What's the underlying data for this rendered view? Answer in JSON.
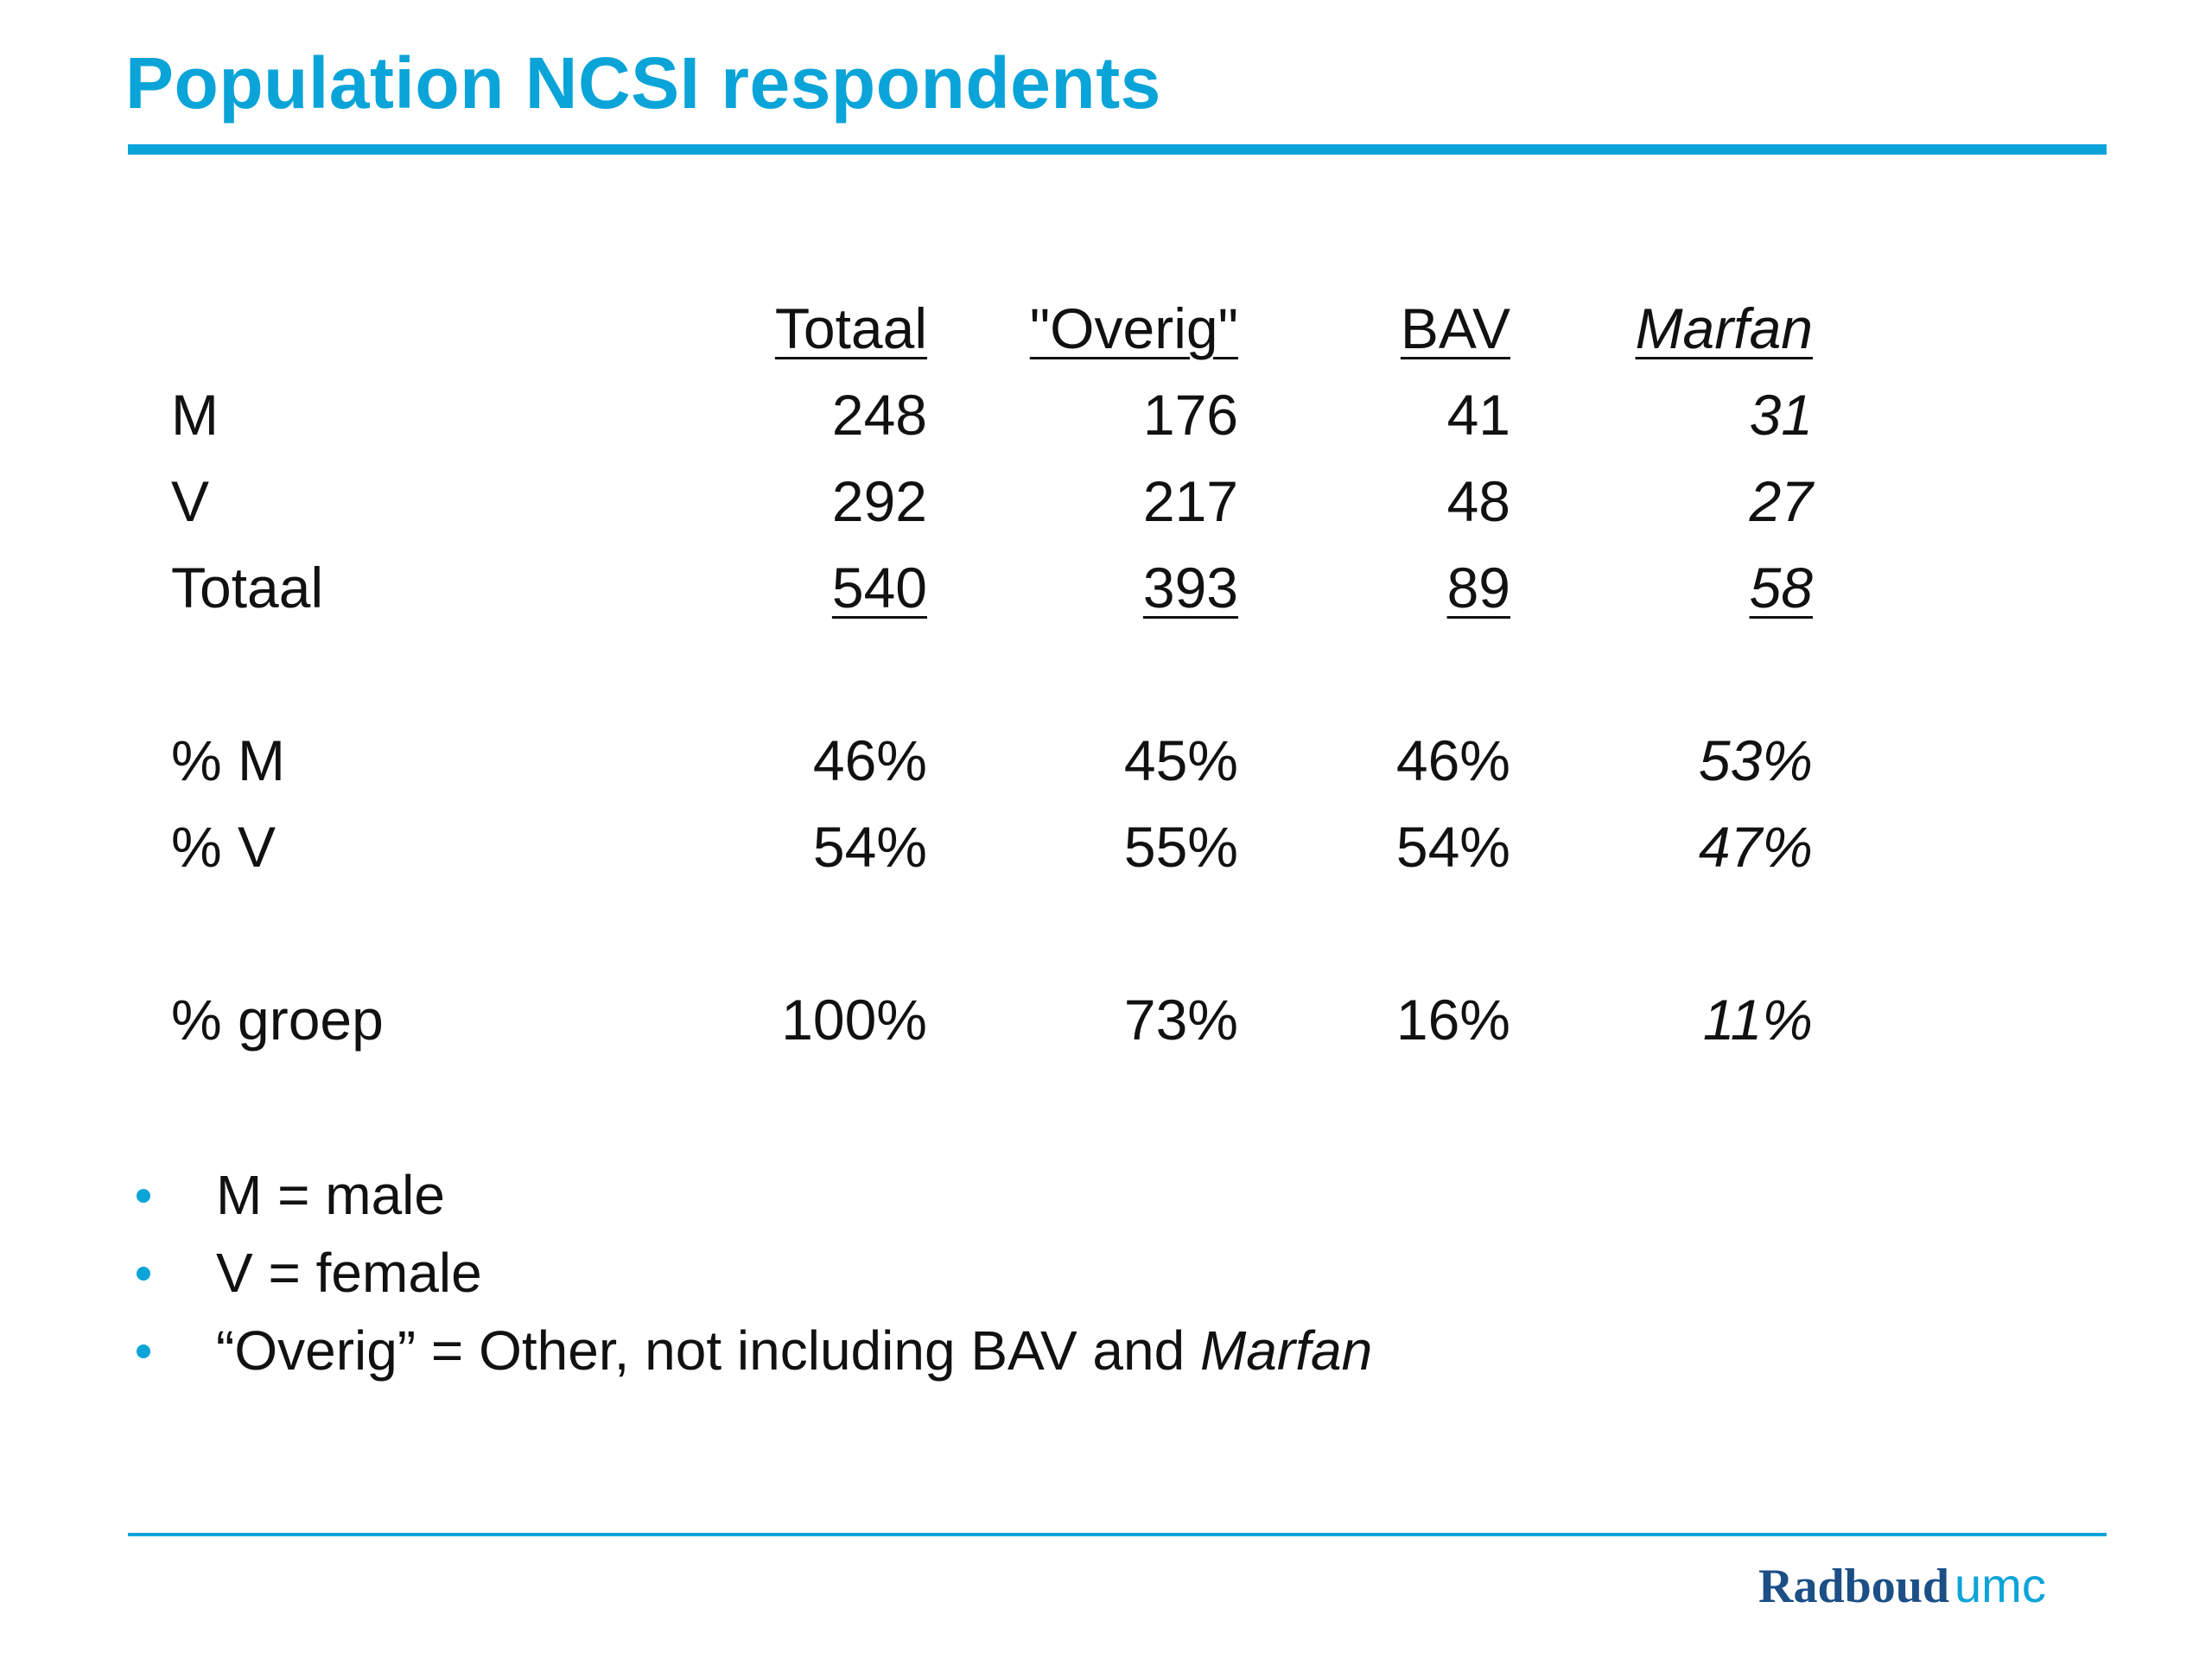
{
  "title": "Population NCSI respondents",
  "accent_color": "#0aa4d8",
  "logo_color": "#1b4f86",
  "table": {
    "headers": [
      "Totaal",
      "\"Overig\"",
      "BAV",
      "Marfan"
    ],
    "rows": [
      {
        "label": "M",
        "values": [
          "248",
          "176",
          "41",
          "31"
        ]
      },
      {
        "label": "V",
        "values": [
          "292",
          "217",
          "48",
          "27"
        ]
      },
      {
        "label": "Totaal",
        "values": [
          "540",
          "393",
          "89",
          "58"
        ]
      },
      {
        "label": "% M",
        "values": [
          "46%",
          "45%",
          "46%",
          "53%"
        ]
      },
      {
        "label": "% V",
        "values": [
          "54%",
          "55%",
          "54%",
          "47%"
        ]
      },
      {
        "label": "% groep",
        "values": [
          "100%",
          "73%",
          "16%",
          "11%"
        ]
      }
    ]
  },
  "bullets": {
    "b1": "M = male",
    "b2": "V = female",
    "b3_prefix": "“Overig” = Other, not including BAV and ",
    "b3_italic": "Marfan"
  },
  "logo": {
    "main": "Radboud",
    "sub": "umc"
  }
}
